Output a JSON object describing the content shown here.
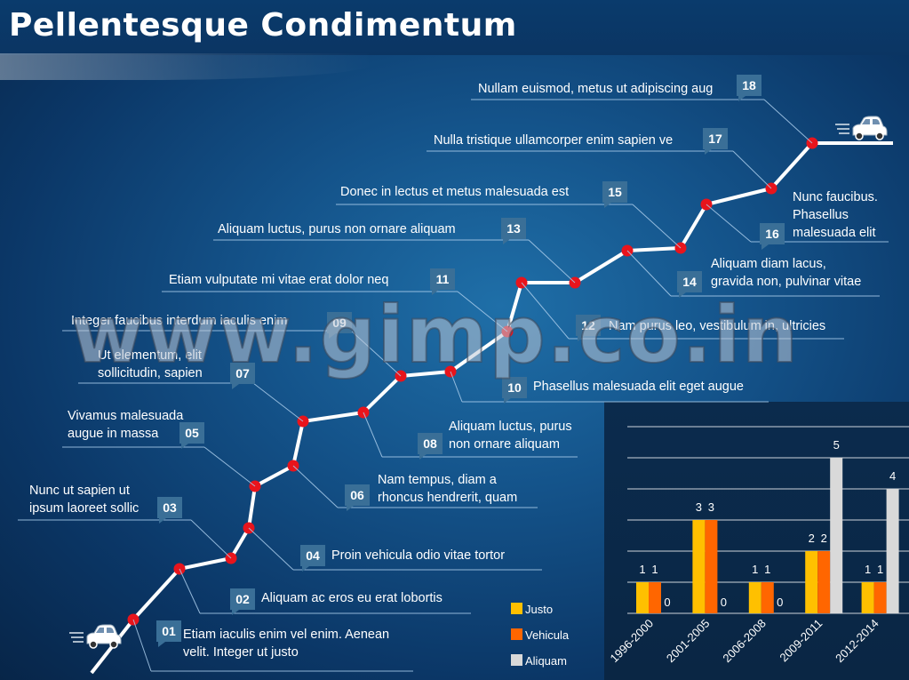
{
  "title": "Pellentesque Condimentum",
  "watermark": "www.gimp.co.in",
  "colors": {
    "background": "#0b3767",
    "route": "#ffffff",
    "milestone_dot": "#e8141c",
    "badge": "#3a6f97",
    "Justo": "#ffc000",
    "Vehicula": "#ff6600",
    "Aliquam": "#d9d9d9"
  },
  "icons": [
    "car-icon-start",
    "car-icon-end"
  ],
  "milestones": [
    {
      "num": "01",
      "lines": [
        "Etiam iaculis enim vel enim. Aenean",
        "velit. Integer ut justo"
      ]
    },
    {
      "num": "02",
      "lines": [
        "Aliquam ac eros eu erat lobortis"
      ]
    },
    {
      "num": "03",
      "lines": [
        "Nunc ut sapien ut",
        "ipsum laoreet sollic"
      ]
    },
    {
      "num": "04",
      "lines": [
        "Proin vehicula odio vitae tortor"
      ]
    },
    {
      "num": "05",
      "lines": [
        "Vivamus malesuada",
        "augue in massa"
      ]
    },
    {
      "num": "06",
      "lines": [
        "Nam tempus, diam a",
        "rhoncus hendrerit, quam"
      ]
    },
    {
      "num": "07",
      "lines": [
        "Ut elementum, elit",
        "sollicitudin, sapien"
      ]
    },
    {
      "num": "08",
      "lines": [
        "Aliquam luctus, purus",
        "non ornare aliquam"
      ]
    },
    {
      "num": "09",
      "lines": [
        "Integer faucibus interdum  iaculis enim"
      ]
    },
    {
      "num": "10",
      "lines": [
        "Phasellus malesuada elit eget augue"
      ]
    },
    {
      "num": "11",
      "lines": [
        "Etiam vulputate mi vitae erat dolor neq"
      ]
    },
    {
      "num": "12",
      "lines": [
        "Nam purus leo, vestibulum in, ultricies"
      ]
    },
    {
      "num": "13",
      "lines": [
        "Aliquam luctus, purus non ornare aliquam"
      ]
    },
    {
      "num": "14",
      "lines": [
        "Aliquam diam lacus,",
        "gravida non, pulvinar vitae"
      ]
    },
    {
      "num": "15",
      "lines": [
        "Donec in lectus et metus malesuada est"
      ]
    },
    {
      "num": "16",
      "lines": [
        "Nunc faucibus.",
        "Phasellus",
        "malesuada elit"
      ]
    },
    {
      "num": "17",
      "lines": [
        "Nulla tristique ullamcorper enim sapien ve"
      ]
    },
    {
      "num": "18",
      "lines": [
        "Nullam euismod, metus ut adipiscing aug"
      ]
    }
  ],
  "chart_data": {
    "type": "bar",
    "categories": [
      "1996-2000",
      "2001-2005",
      "2006-2008",
      "2009-2011",
      "2012-2014"
    ],
    "series": [
      {
        "name": "Justo",
        "values": [
          1,
          3,
          1,
          2,
          1
        ]
      },
      {
        "name": "Vehicula",
        "values": [
          1,
          3,
          1,
          2,
          1
        ]
      },
      {
        "name": "Aliquam",
        "values": [
          0,
          0,
          0,
          5,
          4
        ]
      }
    ],
    "ylim": [
      0,
      6
    ],
    "grid": true,
    "legend": "left",
    "data_labels": true
  }
}
